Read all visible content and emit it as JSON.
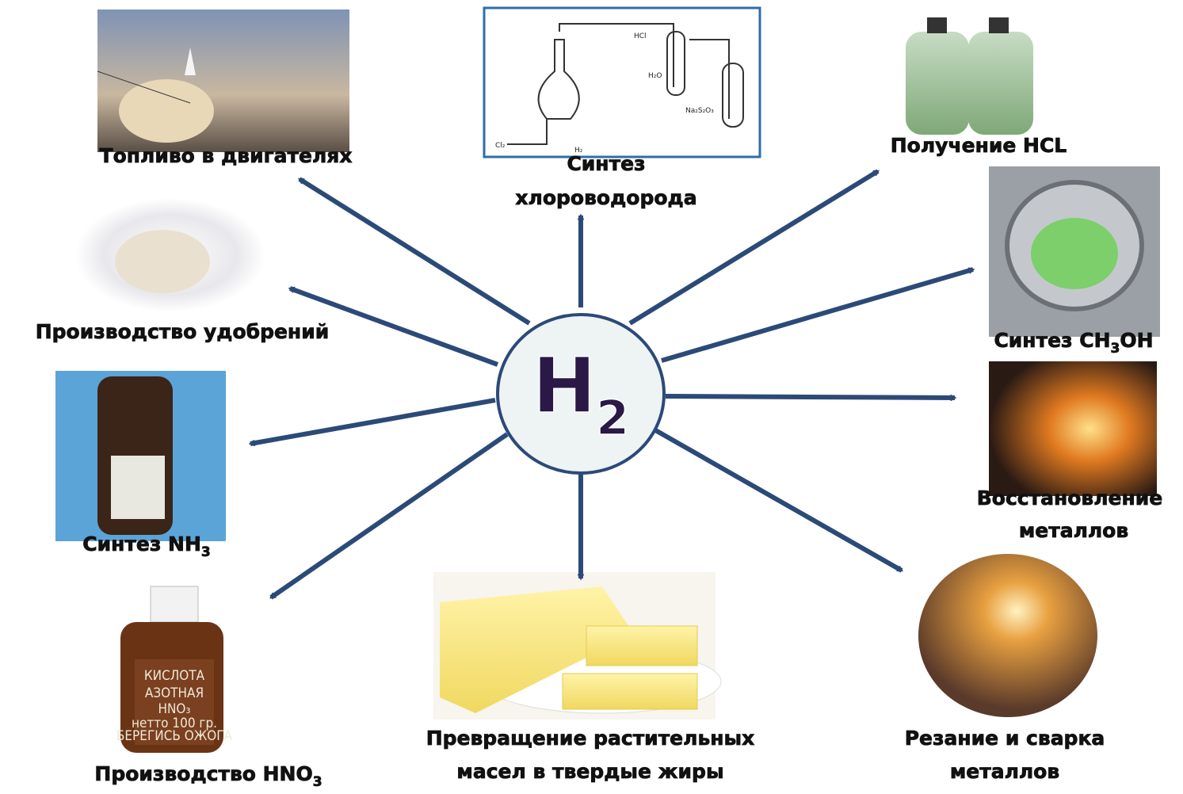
{
  "center": {
    "symbol": "H",
    "subscript": "2"
  },
  "nodes": [
    {
      "label": [
        {
          "text": "Топливо в двигателях"
        }
      ]
    },
    {
      "label": [
        {
          "text": "Синтез"
        },
        {
          "text": "хлороводорода"
        }
      ],
      "image_text": [
        "HCl",
        "H₂O",
        "Na₂S₂O₃",
        "Cl₂",
        "H₂"
      ]
    },
    {
      "label": [
        {
          "text": "Получение HCL"
        }
      ]
    },
    {
      "label": [
        {
          "text": "Синтез CH",
          "sub": "3",
          "tail": "OH"
        }
      ]
    },
    {
      "label": [
        {
          "text": "Восстановление"
        },
        {
          "text": "металлов"
        }
      ]
    },
    {
      "label": [
        {
          "text": "Резание и сварка"
        },
        {
          "text": "металлов"
        }
      ]
    },
    {
      "label": [
        {
          "text": "Превращение растительных"
        },
        {
          "text": "масел в твердые жиры"
        }
      ]
    },
    {
      "label": [
        {
          "text": "Производство HNO",
          "sub": "3"
        }
      ],
      "image_text": [
        "КИСЛОТА",
        "АЗОТНАЯ",
        "HNO₃",
        "нетто 100 гр.",
        "БЕРЕГИСЬ ОЖОГА"
      ]
    },
    {
      "label": [
        {
          "text": "Синтез NH",
          "sub": "3"
        }
      ]
    },
    {
      "label": [
        {
          "text": "Производство удобрений"
        }
      ]
    }
  ]
}
